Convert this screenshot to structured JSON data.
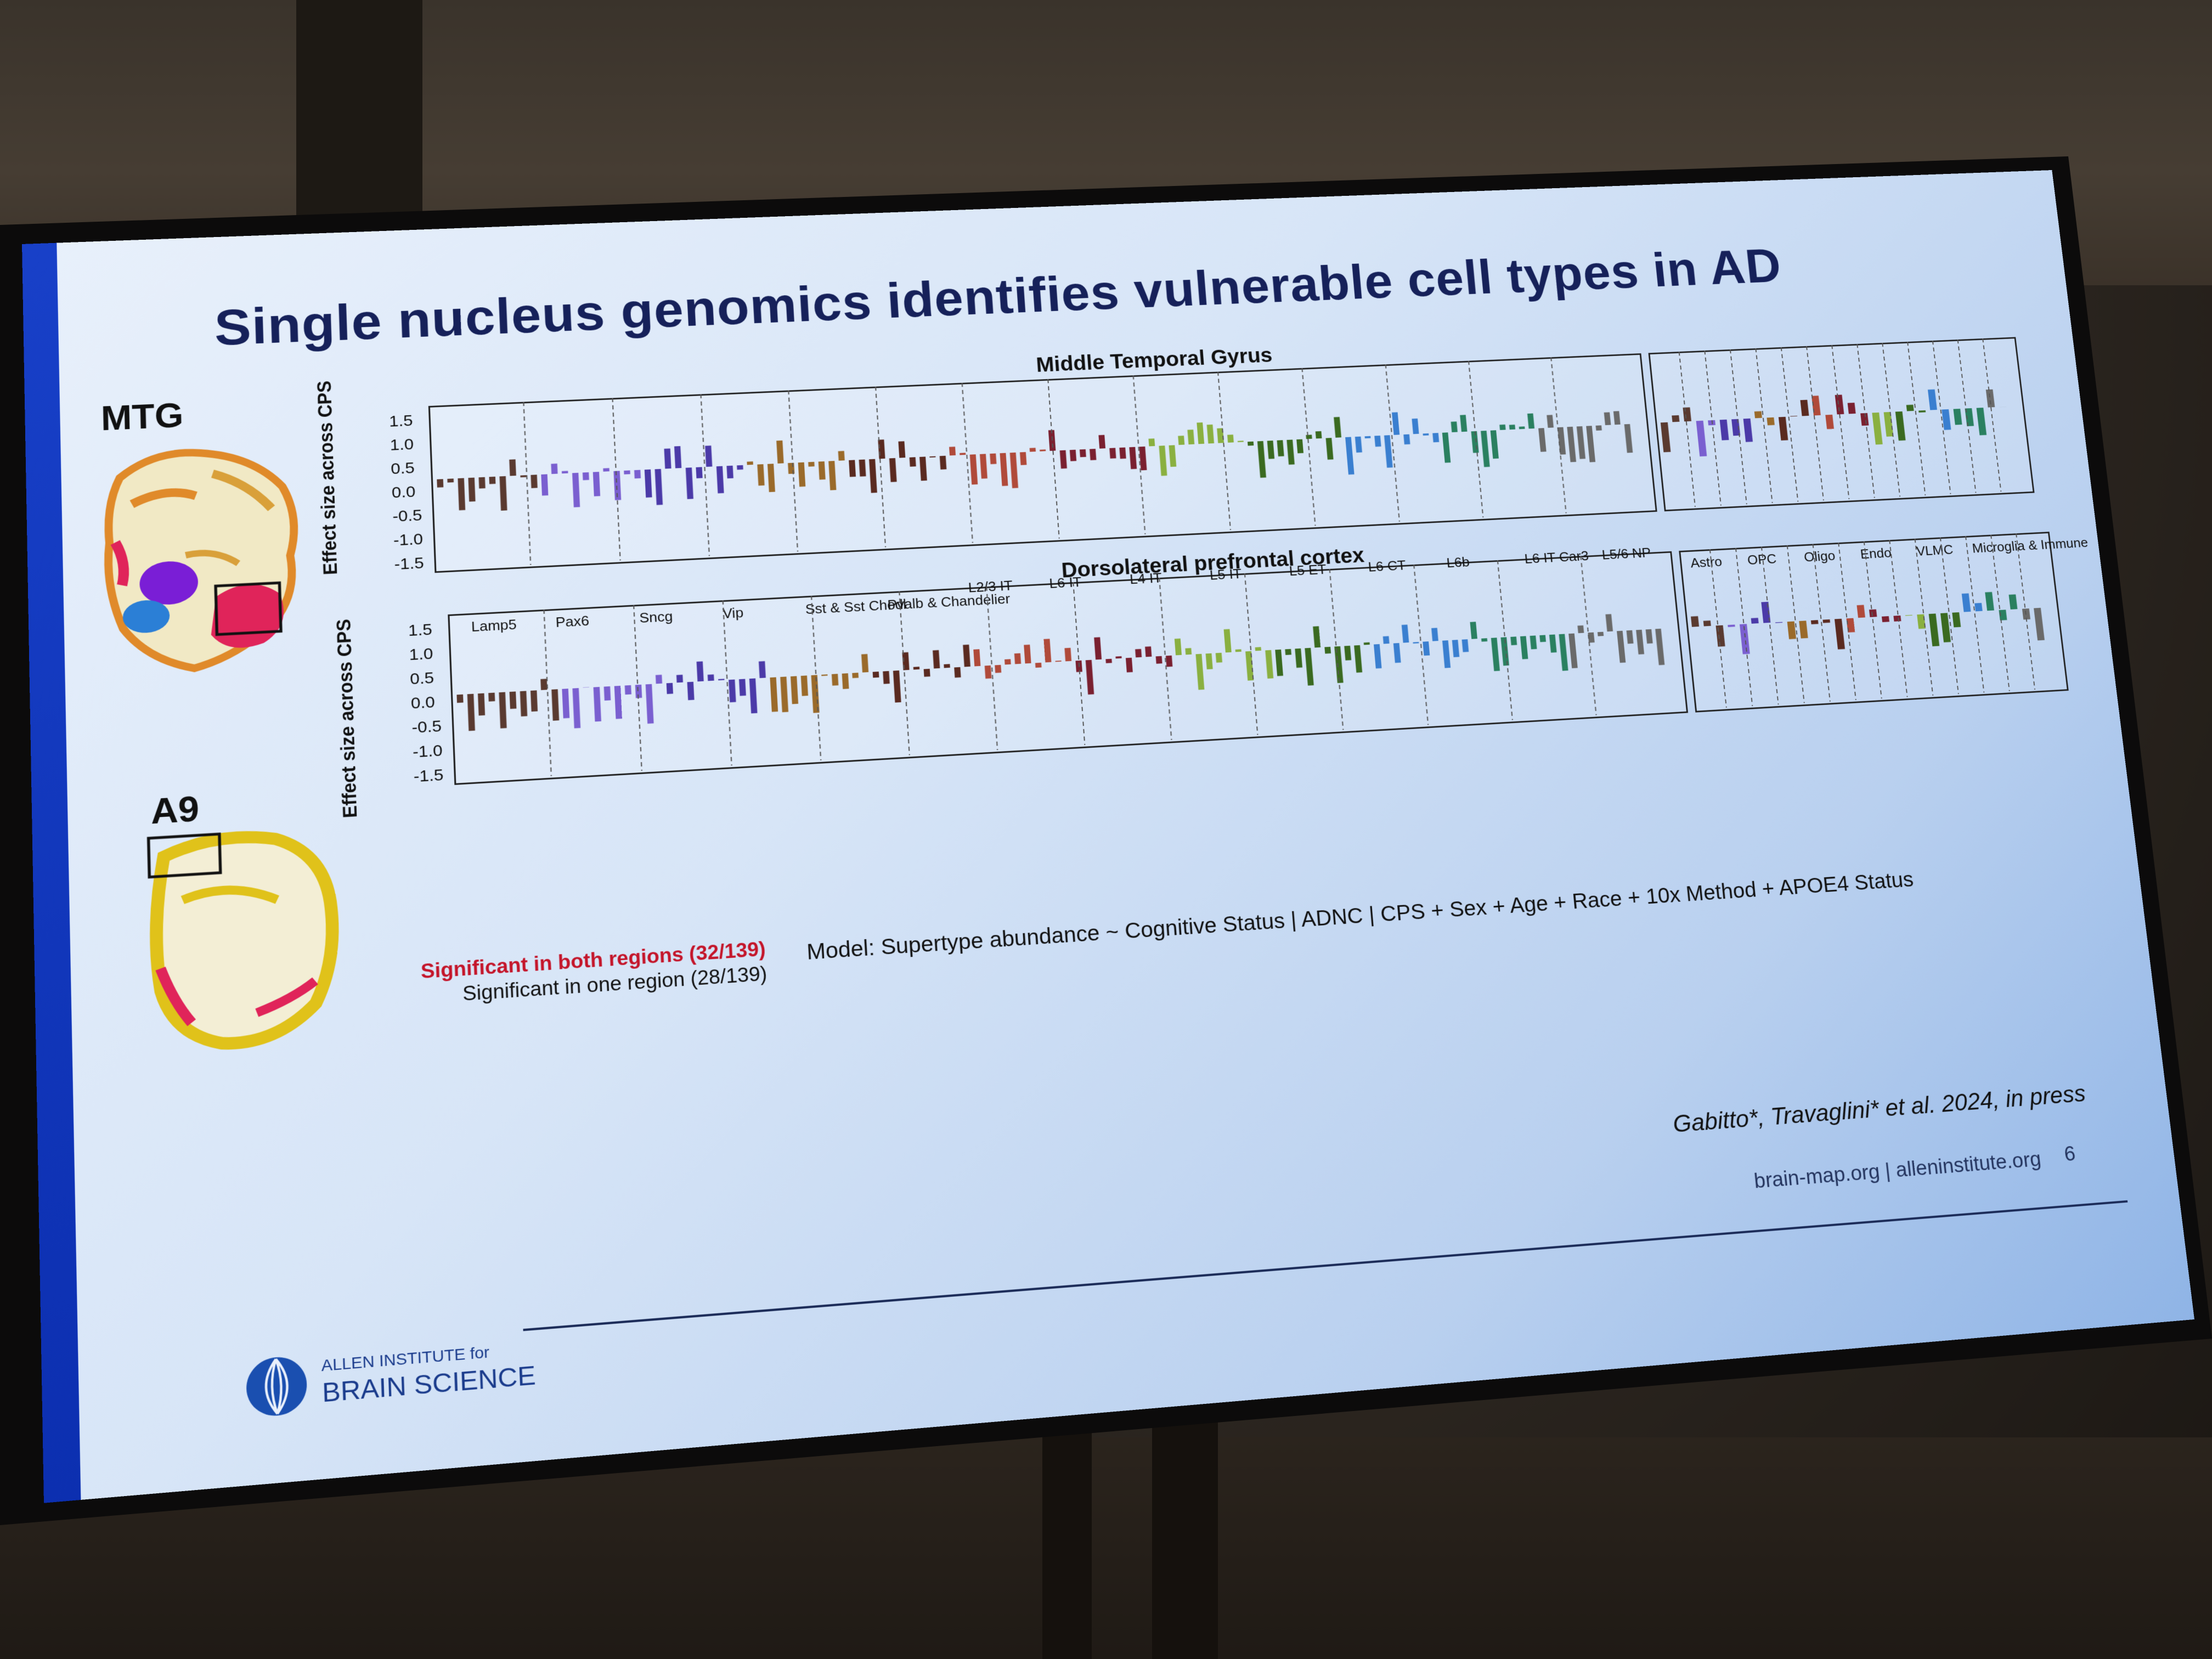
{
  "slide": {
    "title": "Single nucleus genomics identifies vulnerable cell types in AD",
    "regions": {
      "mtg": "MTG",
      "a9": "A9"
    },
    "panel_titles": {
      "top": "Middle Temporal Gyrus",
      "bottom": "Dorsolateral prefrontal cortex"
    },
    "axis_label": "Effect size across CPS",
    "yticks": [
      "1.5",
      "1.0",
      "0.5",
      "0.0",
      "-0.5",
      "-1.0",
      "-1.5"
    ],
    "groups": [
      "Lamp5",
      "Pax6",
      "Sncg",
      "Vip",
      "Sst & Sst Chodl",
      "Pvalb & Chandelier",
      "L2/3 IT",
      "L6 IT",
      "L4 IT",
      "L5 IT",
      "L5 ET",
      "L6 CT",
      "L6b",
      "L6 IT Car3",
      "L5/6 NP"
    ],
    "nonneuronal_groups": [
      "Astro",
      "OPC",
      "Oligo",
      "Endo",
      "VLMC",
      "Microglia & Immune"
    ],
    "legend": {
      "both": "Significant in both regions (32/139)",
      "one": "Significant in one region (28/139)"
    },
    "model": "Model: Supertype abundance ~ Cognitive Status | ADNC | CPS + Sex + Age + Race + 10x Method + APOE4 Status",
    "citation": "Gabitto*, Travaglini* et al. 2024, in press",
    "footer": {
      "site": "brain-map.org | alleninstitute.org",
      "page": "6"
    },
    "logo": {
      "top": "ALLEN INSTITUTE for",
      "bottom": "BRAIN SCIENCE"
    },
    "colors": {
      "accent": "#1840c8",
      "title": "#16215a",
      "significant": "#c4152a"
    }
  }
}
